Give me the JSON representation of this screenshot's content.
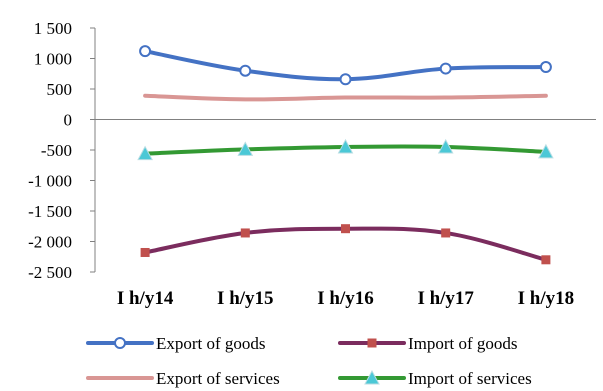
{
  "chart_data": {
    "type": "line",
    "categories": [
      "I h/y14",
      "I h/y15",
      "I h/y16",
      "I h/y17",
      "I h/y18"
    ],
    "ylim": [
      -2500,
      1500
    ],
    "yticks": [
      1500,
      1000,
      500,
      0,
      -500,
      -1000,
      -1500,
      -2000,
      -2500
    ],
    "ytick_labels": [
      "1 500",
      "1 000",
      "500",
      "0",
      "-500",
      "-1 000",
      "-1 500",
      "-2 000",
      "-2 500"
    ],
    "grid": false,
    "legend_position": "bottom",
    "series": [
      {
        "name": "Export of goods",
        "values": [
          1120,
          800,
          660,
          835,
          860
        ],
        "color": "#4472c4",
        "marker": "circle"
      },
      {
        "name": "Import of goods",
        "values": [
          -2180,
          -1860,
          -1790,
          -1860,
          -2300
        ],
        "color": "#7b2c5e",
        "marker": "square",
        "marker_color": "#c0504d"
      },
      {
        "name": "Export of services",
        "values": [
          390,
          330,
          360,
          360,
          390
        ],
        "color": "#d99694",
        "marker": "none"
      },
      {
        "name": "Import of services",
        "values": [
          -560,
          -490,
          -450,
          -450,
          -530
        ],
        "color": "#339933",
        "marker": "triangle",
        "marker_color": "#4bc8d6"
      }
    ]
  }
}
